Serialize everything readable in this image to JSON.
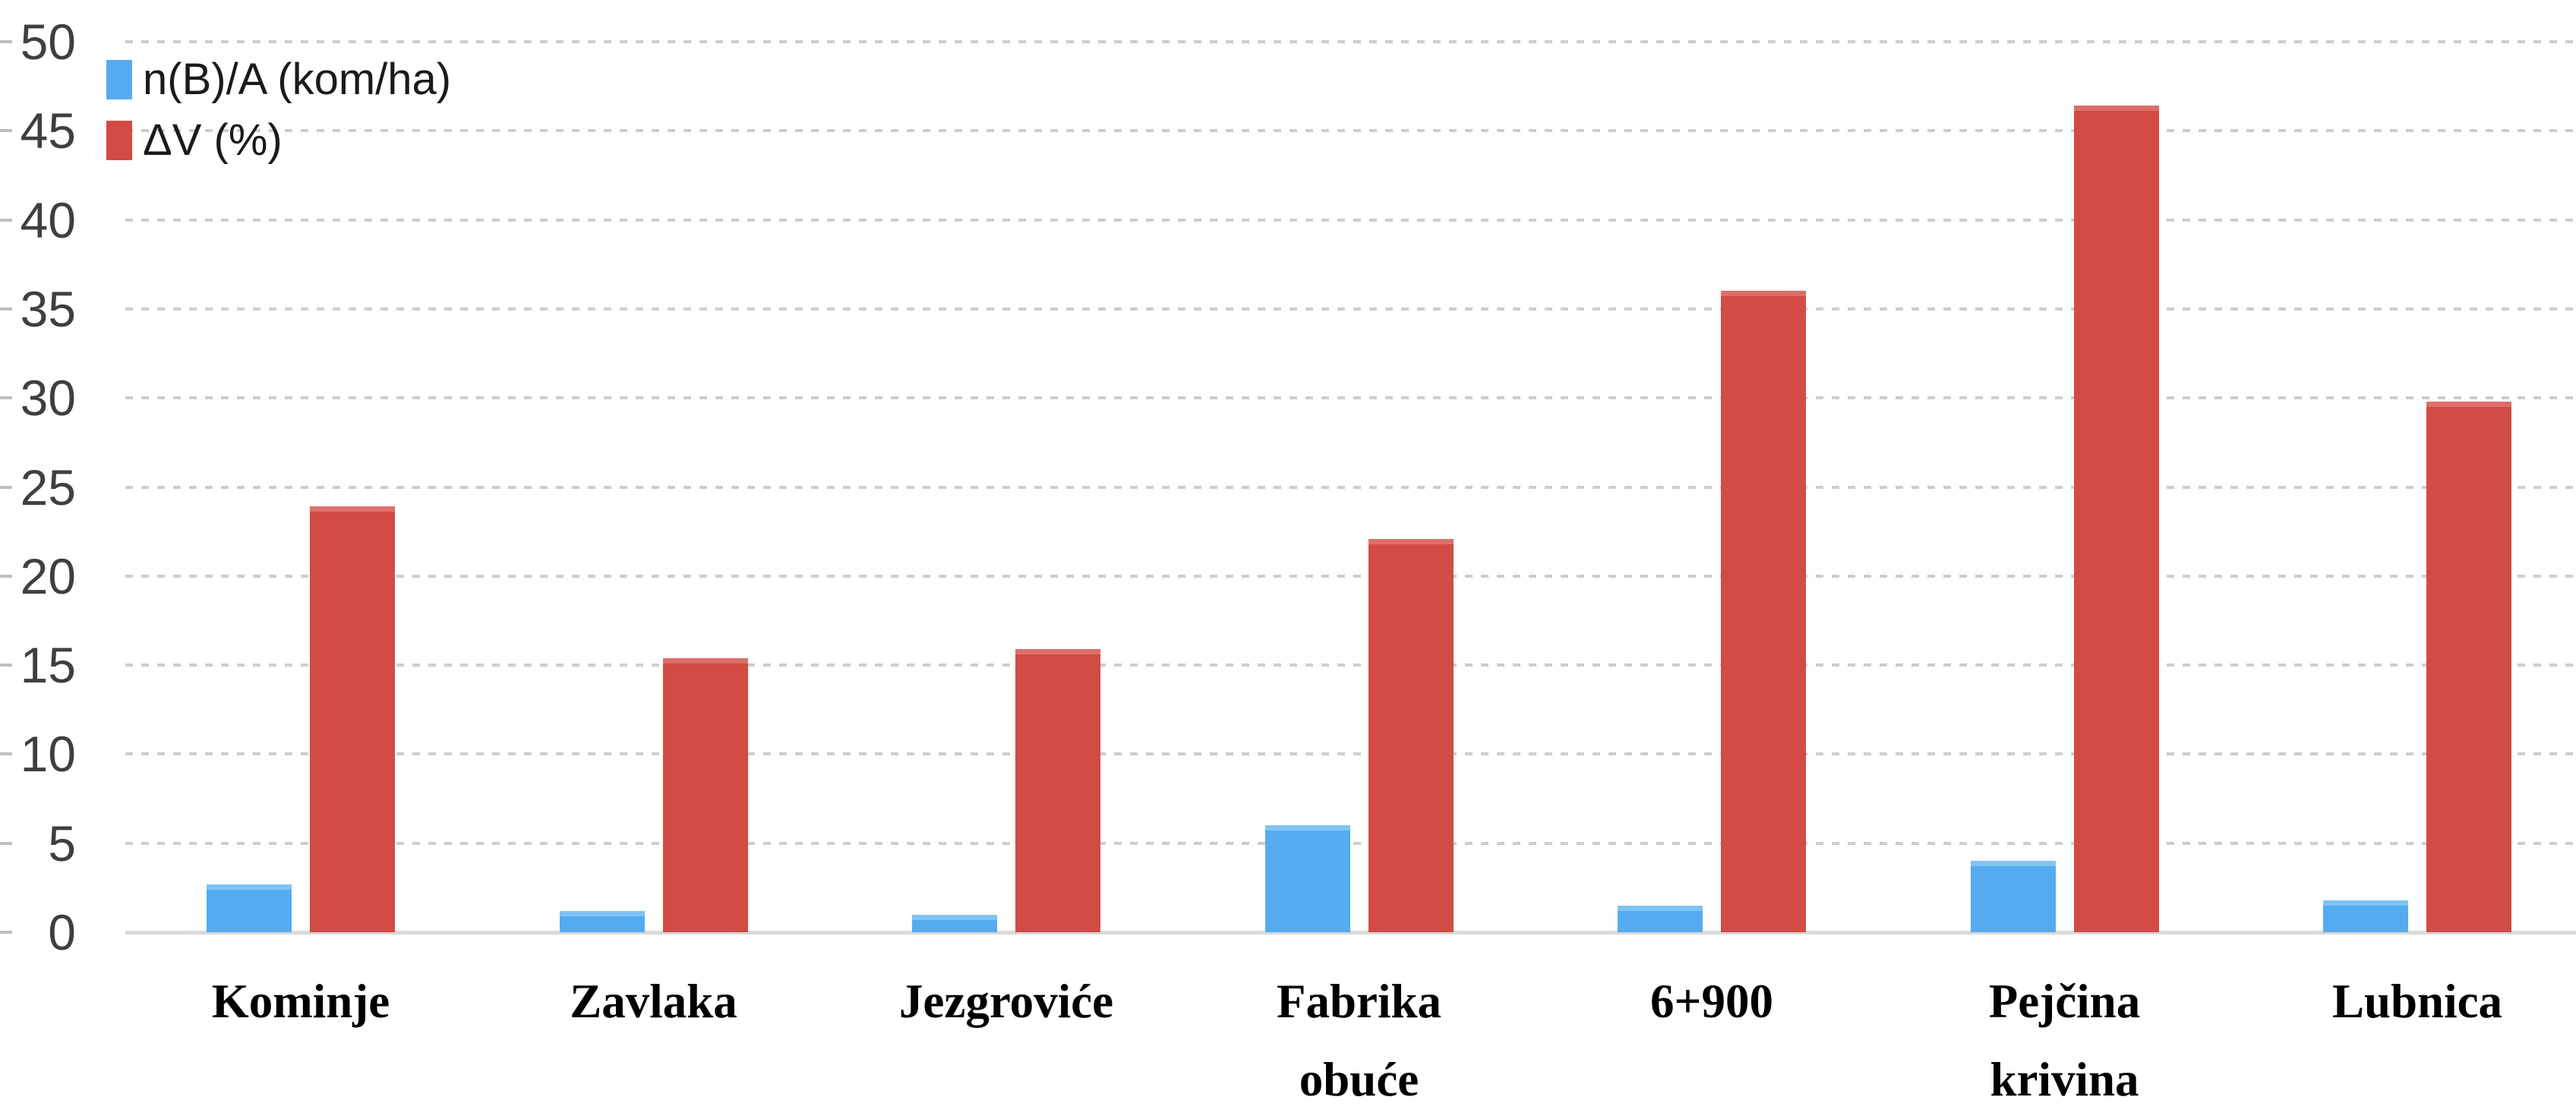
{
  "chart_data": {
    "type": "bar",
    "title": "",
    "xlabel": "",
    "ylabel": "",
    "categories": [
      "Kominje",
      "Zavlaka",
      "Jezgroviće",
      "Fabrika obuće",
      "6+900",
      "Pejčina krivina",
      "Lubnica"
    ],
    "series": [
      {
        "name": "n(B)/A (kom/ha)",
        "color": "#54abef",
        "values": [
          2.7,
          1.2,
          1.0,
          6.0,
          1.5,
          4.0,
          1.8
        ]
      },
      {
        "name": "ΔV (%)",
        "color": "#d24b45",
        "values": [
          23.9,
          15.4,
          15.9,
          22.1,
          36.0,
          46.4,
          29.8
        ]
      }
    ],
    "ylim": [
      0,
      50
    ],
    "yticks": [
      50,
      45,
      40,
      35,
      30,
      25,
      20,
      15,
      10,
      5,
      0
    ],
    "grid": "horizontal-dashed",
    "gridline_color": "#cdcdcd",
    "axis_line_color": "#d9d9d9",
    "tick_label_color": "#3f3f3f",
    "legend_position": "top-left"
  }
}
